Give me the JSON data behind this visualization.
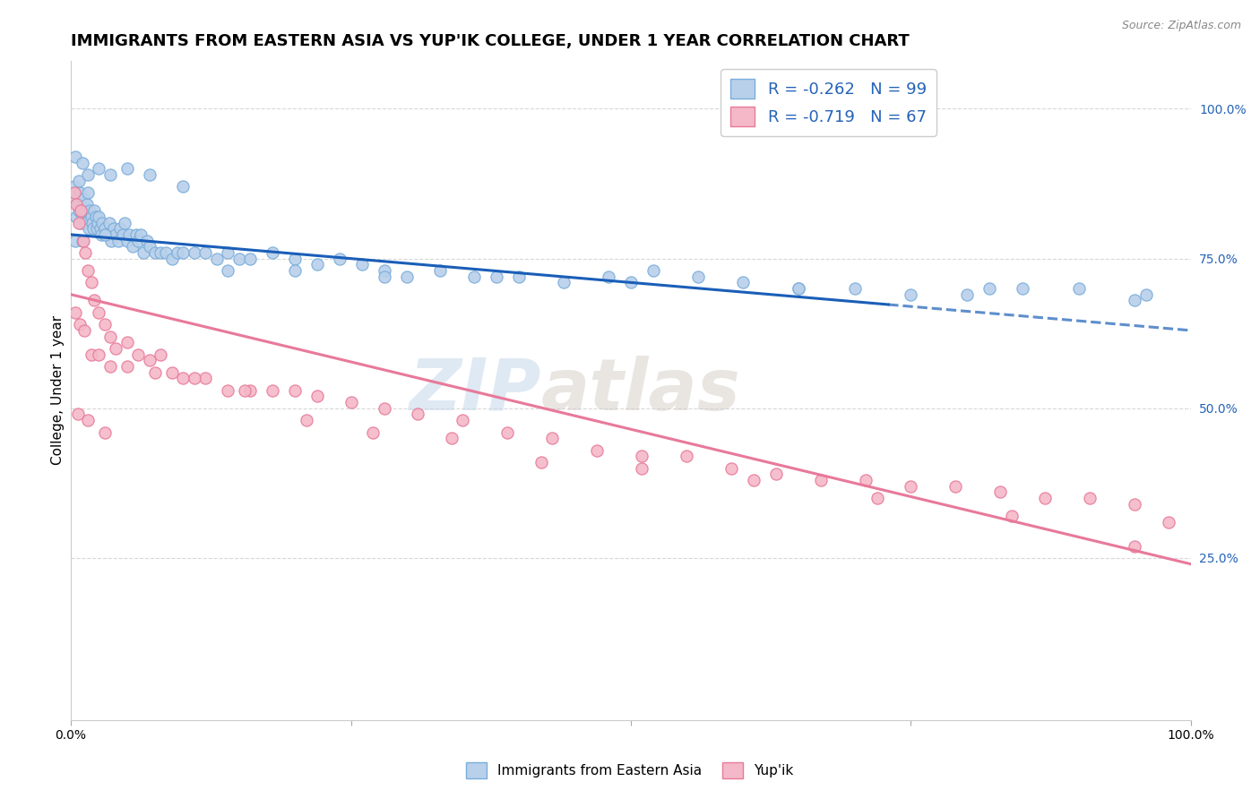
{
  "title": "IMMIGRANTS FROM EASTERN ASIA VS YUP'IK COLLEGE, UNDER 1 YEAR CORRELATION CHART",
  "source": "Source: ZipAtlas.com",
  "ylabel": "College, Under 1 year",
  "xlim": [
    0,
    1
  ],
  "ylim": [
    -0.02,
    1.08
  ],
  "watermark": "ZIPatlas",
  "legend": {
    "series1_label": "R = -0.262   N = 99",
    "series2_label": "R = -0.719   N = 67",
    "series1_color": "#b8d0ea",
    "series2_color": "#f4b8c8",
    "series1_edge": "#7aaddb",
    "series2_edge": "#e87a9a"
  },
  "series1": {
    "color": "#b8d0ea",
    "edge_color": "#7aaddb",
    "trend_start_x": 0.0,
    "trend_start_y": 0.79,
    "trend_end_x": 1.0,
    "trend_end_y": 0.63,
    "trend_solid_end_x": 0.73,
    "trend_color": "#1a5eb8",
    "x": [
      0.003,
      0.004,
      0.005,
      0.006,
      0.007,
      0.008,
      0.009,
      0.01,
      0.011,
      0.012,
      0.013,
      0.014,
      0.015,
      0.016,
      0.017,
      0.018,
      0.019,
      0.02,
      0.021,
      0.022,
      0.023,
      0.024,
      0.025,
      0.026,
      0.027,
      0.028,
      0.03,
      0.032,
      0.034,
      0.036,
      0.038,
      0.04,
      0.042,
      0.044,
      0.046,
      0.048,
      0.05,
      0.052,
      0.055,
      0.058,
      0.06,
      0.062,
      0.065,
      0.068,
      0.07,
      0.075,
      0.08,
      0.085,
      0.09,
      0.095,
      0.1,
      0.11,
      0.12,
      0.13,
      0.14,
      0.15,
      0.16,
      0.18,
      0.2,
      0.22,
      0.24,
      0.26,
      0.28,
      0.3,
      0.33,
      0.36,
      0.4,
      0.44,
      0.48,
      0.52,
      0.56,
      0.6,
      0.65,
      0.7,
      0.75,
      0.8,
      0.85,
      0.9,
      0.95,
      0.004,
      0.007,
      0.01,
      0.015,
      0.025,
      0.035,
      0.05,
      0.07,
      0.1,
      0.14,
      0.2,
      0.28,
      0.38,
      0.5,
      0.65,
      0.82,
      0.96,
      0.004,
      0.01,
      0.03
    ],
    "y": [
      0.87,
      0.85,
      0.82,
      0.84,
      0.83,
      0.86,
      0.81,
      0.82,
      0.85,
      0.83,
      0.81,
      0.84,
      0.86,
      0.8,
      0.83,
      0.82,
      0.81,
      0.8,
      0.83,
      0.82,
      0.8,
      0.81,
      0.82,
      0.8,
      0.79,
      0.81,
      0.8,
      0.79,
      0.81,
      0.78,
      0.8,
      0.79,
      0.78,
      0.8,
      0.79,
      0.81,
      0.78,
      0.79,
      0.77,
      0.79,
      0.78,
      0.79,
      0.76,
      0.78,
      0.77,
      0.76,
      0.76,
      0.76,
      0.75,
      0.76,
      0.76,
      0.76,
      0.76,
      0.75,
      0.76,
      0.75,
      0.75,
      0.76,
      0.75,
      0.74,
      0.75,
      0.74,
      0.73,
      0.72,
      0.73,
      0.72,
      0.72,
      0.71,
      0.72,
      0.73,
      0.72,
      0.71,
      0.7,
      0.7,
      0.69,
      0.69,
      0.7,
      0.7,
      0.68,
      0.92,
      0.88,
      0.91,
      0.89,
      0.9,
      0.89,
      0.9,
      0.89,
      0.87,
      0.73,
      0.73,
      0.72,
      0.72,
      0.71,
      0.7,
      0.7,
      0.69,
      0.78,
      0.78,
      0.79
    ]
  },
  "series2": {
    "color": "#f4b8c8",
    "edge_color": "#e87a9a",
    "trend_start_x": 0.0,
    "trend_start_y": 0.69,
    "trend_end_x": 1.0,
    "trend_end_y": 0.24,
    "trend_color": "#e8799a",
    "x": [
      0.003,
      0.005,
      0.007,
      0.009,
      0.011,
      0.013,
      0.015,
      0.018,
      0.021,
      0.025,
      0.03,
      0.035,
      0.04,
      0.05,
      0.06,
      0.07,
      0.08,
      0.09,
      0.1,
      0.12,
      0.14,
      0.16,
      0.18,
      0.2,
      0.22,
      0.25,
      0.28,
      0.31,
      0.35,
      0.39,
      0.43,
      0.47,
      0.51,
      0.55,
      0.59,
      0.63,
      0.67,
      0.71,
      0.75,
      0.79,
      0.83,
      0.87,
      0.91,
      0.95,
      0.98,
      0.004,
      0.008,
      0.012,
      0.018,
      0.025,
      0.035,
      0.05,
      0.075,
      0.11,
      0.155,
      0.21,
      0.27,
      0.34,
      0.42,
      0.51,
      0.61,
      0.72,
      0.84,
      0.95,
      0.006,
      0.015,
      0.03
    ],
    "y": [
      0.86,
      0.84,
      0.81,
      0.83,
      0.78,
      0.76,
      0.73,
      0.71,
      0.68,
      0.66,
      0.64,
      0.62,
      0.6,
      0.61,
      0.59,
      0.58,
      0.59,
      0.56,
      0.55,
      0.55,
      0.53,
      0.53,
      0.53,
      0.53,
      0.52,
      0.51,
      0.5,
      0.49,
      0.48,
      0.46,
      0.45,
      0.43,
      0.42,
      0.42,
      0.4,
      0.39,
      0.38,
      0.38,
      0.37,
      0.37,
      0.36,
      0.35,
      0.35,
      0.34,
      0.31,
      0.66,
      0.64,
      0.63,
      0.59,
      0.59,
      0.57,
      0.57,
      0.56,
      0.55,
      0.53,
      0.48,
      0.46,
      0.45,
      0.41,
      0.4,
      0.38,
      0.35,
      0.32,
      0.27,
      0.49,
      0.48,
      0.46
    ]
  },
  "background_color": "#ffffff",
  "grid_color": "#d8d8d8",
  "title_fontsize": 13,
  "axis_fontsize": 11,
  "tick_fontsize": 10,
  "marker_size": 90,
  "right_axis_color": "#2563b8"
}
